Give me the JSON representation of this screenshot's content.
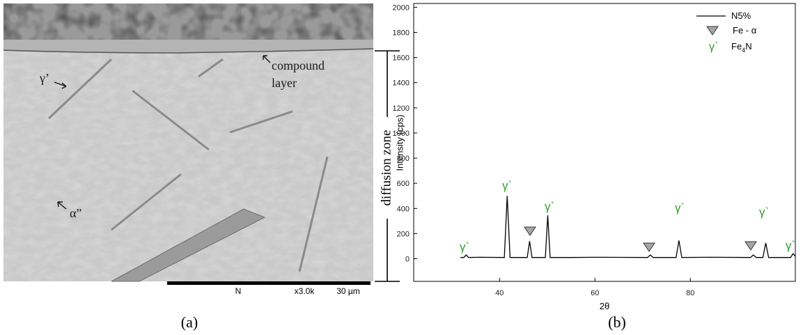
{
  "panel_labels": [
    "(a)",
    "(b)"
  ],
  "micrograph": {
    "annotations": [
      "compound",
      "layer",
      "γ’",
      "α”"
    ],
    "zone_label": "diffusion zone",
    "scale_bar": [
      "N",
      "x3.0k",
      "30 µm"
    ]
  },
  "chart_data": {
    "type": "line",
    "x_label": "2θ",
    "y_label": "Intensity (cps)",
    "x": [
      31.8,
      32.5,
      33,
      33.5,
      36,
      41,
      41.6,
      42.2,
      45.8,
      46.3,
      46.8,
      49.6,
      50.1,
      50.6,
      55,
      60,
      71,
      71.6,
      72.2,
      77,
      77.6,
      78.2,
      85,
      92.6,
      93.2,
      93.8,
      95.2,
      95.8,
      96.4,
      101,
      101.5,
      102
    ],
    "series": [
      {
        "name": "N5%",
        "color": "#000000",
        "values": [
          10,
          10,
          30,
          10,
          12,
          10,
          500,
          10,
          10,
          140,
          10,
          10,
          345,
          10,
          10,
          12,
          10,
          30,
          10,
          10,
          145,
          10,
          12,
          10,
          30,
          10,
          10,
          125,
          10,
          10,
          40,
          20
        ]
      }
    ],
    "xlim": [
      22,
      102
    ],
    "xticks": [
      40,
      60,
      80
    ],
    "ylim": [
      -180,
      2030
    ],
    "yticks": [
      0,
      200,
      400,
      600,
      800,
      1000,
      1200,
      1400,
      1600,
      1800,
      2000
    ],
    "phases": [
      {
        "name": "Fe - α"
      },
      {
        "symbol": "γ`",
        "formula": [
          "Fe",
          "4",
          "N"
        ]
      }
    ],
    "annotations": [
      "γ`",
      "γ`",
      "γ`",
      "γ`",
      "γ`",
      "γ`"
    ],
    "annotation_color": "#2ca02c",
    "legend": "top-right"
  }
}
